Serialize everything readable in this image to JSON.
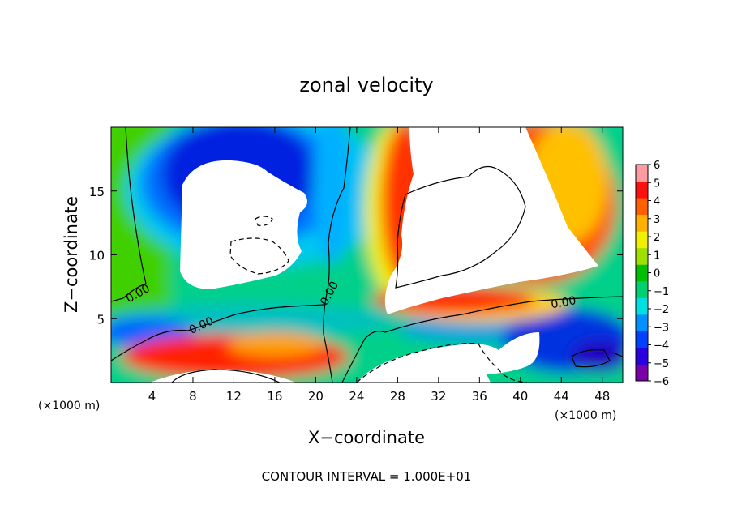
{
  "chart_data": {
    "type": "heatmap",
    "title": "zonal velocity",
    "xlabel": "X−coordinate",
    "ylabel": "Z−coordinate",
    "x_unit_left": "(×1000 m)",
    "x_unit_right": "(×1000 m)",
    "xlim": [
      0,
      50
    ],
    "ylim": [
      0,
      20
    ],
    "x_ticks": [
      4,
      8,
      12,
      16,
      20,
      24,
      28,
      32,
      36,
      40,
      44,
      48
    ],
    "x_tick_labels": [
      "4",
      "8",
      "12",
      "16",
      "20",
      "24",
      "28",
      "32",
      "36",
      "40",
      "44",
      "48"
    ],
    "y_ticks": [
      5,
      10,
      15
    ],
    "y_tick_labels": [
      "5",
      "10",
      "15"
    ],
    "colorbar": {
      "range": [
        -6,
        6
      ],
      "ticks": [
        6,
        5,
        4,
        3,
        2,
        1,
        0,
        -1,
        -2,
        -3,
        -4,
        -5,
        -6
      ],
      "tick_labels": [
        "6",
        "5",
        "4",
        "3",
        "2",
        "1",
        "0",
        "−1",
        "−2",
        "−3",
        "−4",
        "−5",
        "−6"
      ],
      "colors": [
        "#7a00a8",
        "#2a00e0",
        "#0040ff",
        "#0090ff",
        "#00e0e0",
        "#00d070",
        "#00c000",
        "#a0e000",
        "#f0f000",
        "#ffb000",
        "#ff6000",
        "#ff1010",
        "#ff9aa0"
      ]
    },
    "contour_labels": [
      {
        "text": "0.00",
        "x": 2.6,
        "z": 7.0,
        "angle": -30
      },
      {
        "text": "0.00",
        "x": 8.8,
        "z": 4.5,
        "angle": -25
      },
      {
        "text": "0.00",
        "x": 21.3,
        "z": 7.0,
        "angle": -62
      },
      {
        "text": "0.00",
        "x": 44.2,
        "z": 6.3,
        "angle": -10
      }
    ],
    "footer": "CONTOUR INTERVAL = 1.000E+01"
  }
}
